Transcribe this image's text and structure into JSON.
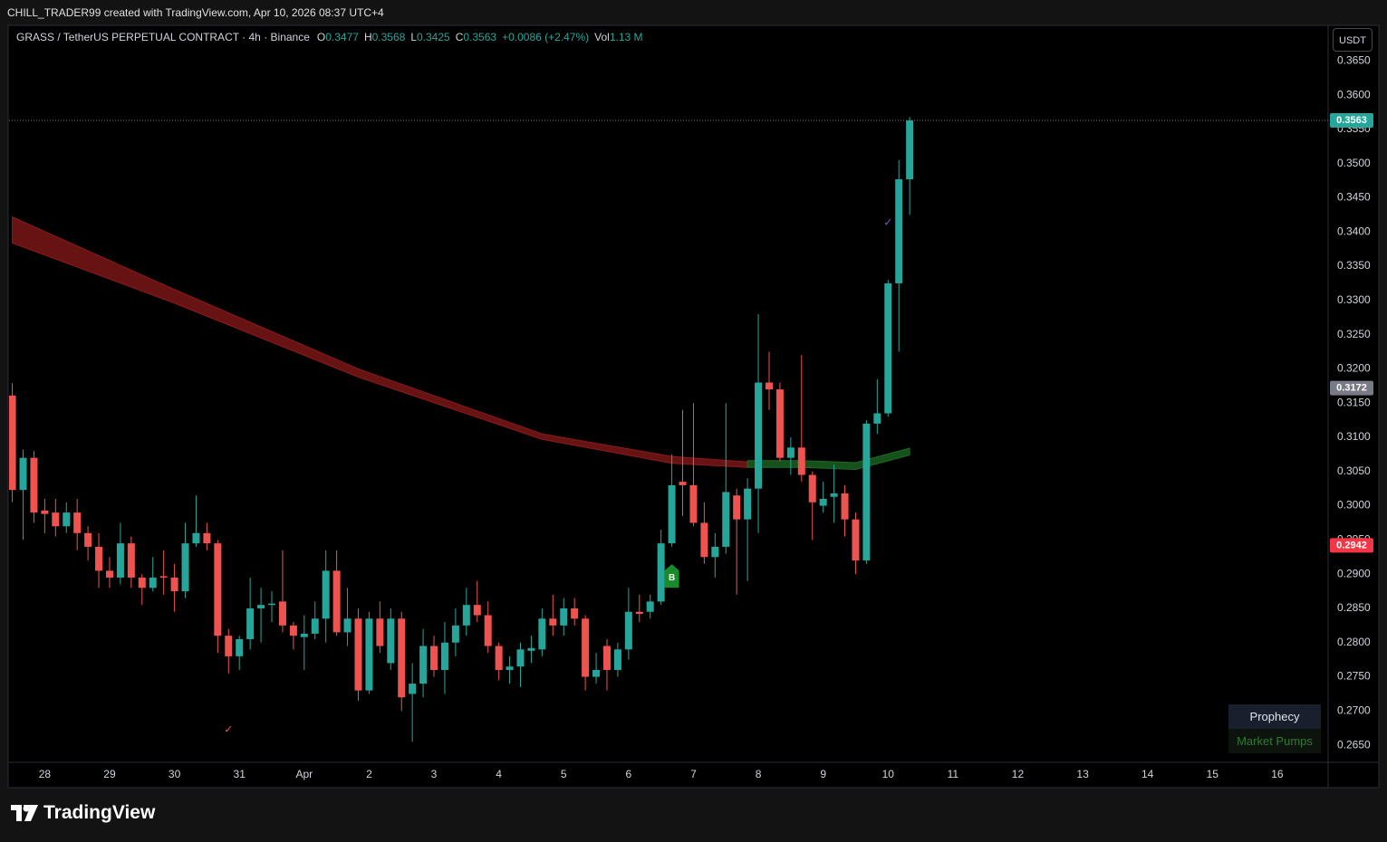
{
  "header": {
    "credit": "CHILL_TRADER99 created with TradingView.com, Apr 10, 2026 08:37 UTC+4",
    "currency": "USDT",
    "brand": "TradingView"
  },
  "legend": {
    "symbol": "GRASS / TetherUS PERPETUAL CONTRACT · 4h · Binance",
    "items": [
      {
        "label": "O",
        "value": "0.3477"
      },
      {
        "label": "H",
        "value": "0.3568"
      },
      {
        "label": "L",
        "value": "0.3425"
      },
      {
        "label": "C",
        "value": "0.3563"
      }
    ],
    "change": "+0.0086 (+2.47%)",
    "volume": {
      "label": "Vol",
      "value": "1.13 M"
    }
  },
  "indicator_panel": {
    "title": "Prophecy",
    "subtitle": "Market Pumps"
  },
  "chart_data": {
    "type": "candlestick",
    "colors": {
      "up": "#26a69a",
      "down": "#ef5350"
    },
    "open": [
      0.3161,
      0.3023,
      0.307,
      0.2993,
      0.299,
      0.297,
      0.299,
      0.296,
      0.294,
      0.2905,
      0.2895,
      0.2945,
      0.2895,
      0.288,
      0.2897,
      0.2895,
      0.2875,
      0.2945,
      0.296,
      0.2945,
      0.281,
      0.278,
      0.2805,
      0.285,
      0.2855,
      0.286,
      0.2825,
      0.2808,
      0.2813,
      0.2835,
      0.2905,
      0.2815,
      0.2835,
      0.273,
      0.2835,
      0.277,
      0.2835,
      0.2725,
      0.274,
      0.2795,
      0.276,
      0.28,
      0.2825,
      0.2855,
      0.284,
      0.2795,
      0.276,
      0.2765,
      0.2788,
      0.279,
      0.2835,
      0.2825,
      0.285,
      0.2835,
      0.275,
      0.2795,
      0.276,
      0.279,
      0.2845,
      0.2845,
      0.286,
      0.2945,
      0.3035,
      0.303,
      0.2975,
      0.2925,
      0.294,
      0.3015,
      0.298,
      0.3025,
      0.318,
      0.317,
      0.307,
      0.3085,
      0.3045,
      0.3,
      0.3013,
      0.3018,
      0.298,
      0.292,
      0.312,
      0.3135,
      0.3325,
      0.3477
    ],
    "high": [
      0.3179,
      0.3082,
      0.308,
      0.301,
      0.301,
      0.3005,
      0.301,
      0.297,
      0.296,
      0.2925,
      0.2975,
      0.2955,
      0.29,
      0.2925,
      0.2935,
      0.2915,
      0.2975,
      0.3015,
      0.2975,
      0.295,
      0.282,
      0.281,
      0.2895,
      0.288,
      0.2875,
      0.2935,
      0.283,
      0.284,
      0.286,
      0.2935,
      0.2935,
      0.288,
      0.285,
      0.2845,
      0.286,
      0.285,
      0.2845,
      0.277,
      0.282,
      0.281,
      0.283,
      0.285,
      0.288,
      0.289,
      0.286,
      0.28,
      0.278,
      0.28,
      0.281,
      0.285,
      0.287,
      0.2865,
      0.2865,
      0.284,
      0.2785,
      0.2805,
      0.28,
      0.288,
      0.287,
      0.287,
      0.2965,
      0.3075,
      0.314,
      0.315,
      0.3005,
      0.296,
      0.315,
      0.3025,
      0.304,
      0.328,
      0.3225,
      0.318,
      0.31,
      0.322,
      0.305,
      0.3035,
      0.306,
      0.303,
      0.299,
      0.3125,
      0.3185,
      0.333,
      0.3505,
      0.3568
    ],
    "low": [
      0.3005,
      0.295,
      0.2975,
      0.296,
      0.2955,
      0.296,
      0.2935,
      0.292,
      0.288,
      0.288,
      0.2885,
      0.288,
      0.2855,
      0.2875,
      0.287,
      0.2845,
      0.2865,
      0.294,
      0.2935,
      0.2785,
      0.2755,
      0.276,
      0.279,
      0.28,
      0.283,
      0.2815,
      0.279,
      0.276,
      0.2805,
      0.28,
      0.281,
      0.2795,
      0.2715,
      0.2725,
      0.2785,
      0.276,
      0.27,
      0.2655,
      0.272,
      0.275,
      0.2725,
      0.278,
      0.281,
      0.283,
      0.2785,
      0.2745,
      0.274,
      0.2735,
      0.277,
      0.278,
      0.281,
      0.281,
      0.2825,
      0.273,
      0.274,
      0.273,
      0.275,
      0.2775,
      0.283,
      0.2835,
      0.2855,
      0.294,
      0.2985,
      0.297,
      0.2915,
      0.2895,
      0.293,
      0.287,
      0.289,
      0.296,
      0.314,
      0.3065,
      0.3045,
      0.3035,
      0.295,
      0.299,
      0.2975,
      0.2955,
      0.29,
      0.2915,
      0.3105,
      0.313,
      0.3225,
      0.3425
    ],
    "close": [
      0.3023,
      0.307,
      0.299,
      0.2988,
      0.297,
      0.299,
      0.296,
      0.294,
      0.2905,
      0.2895,
      0.2945,
      0.2895,
      0.288,
      0.2895,
      0.2895,
      0.2875,
      0.2945,
      0.296,
      0.2945,
      0.281,
      0.278,
      0.2805,
      0.285,
      0.2855,
      0.2857,
      0.2825,
      0.281,
      0.2813,
      0.2835,
      0.2905,
      0.2815,
      0.2835,
      0.273,
      0.2835,
      0.2795,
      0.2835,
      0.272,
      0.274,
      0.2795,
      0.276,
      0.28,
      0.2825,
      0.2855,
      0.284,
      0.2795,
      0.276,
      0.2765,
      0.279,
      0.2792,
      0.2835,
      0.2825,
      0.285,
      0.2835,
      0.275,
      0.276,
      0.276,
      0.279,
      0.2845,
      0.2842,
      0.286,
      0.2945,
      0.303,
      0.303,
      0.2975,
      0.2925,
      0.294,
      0.302,
      0.298,
      0.3025,
      0.318,
      0.317,
      0.307,
      0.3085,
      0.3045,
      0.3005,
      0.301,
      0.3018,
      0.298,
      0.292,
      0.312,
      0.3135,
      0.3325,
      0.3477,
      0.3563
    ],
    "xlim": [
      -0.3,
      121.7
    ],
    "ylim": [
      0.2625,
      0.3702
    ],
    "xticks": [
      {
        "value": 3,
        "label": "28"
      },
      {
        "value": 9,
        "label": "29"
      },
      {
        "value": 15,
        "label": "30"
      },
      {
        "value": 21,
        "label": "31"
      },
      {
        "value": 27,
        "label": "Apr"
      },
      {
        "value": 33,
        "label": "2"
      },
      {
        "value": 39,
        "label": "3"
      },
      {
        "value": 45,
        "label": "4"
      },
      {
        "value": 51,
        "label": "5"
      },
      {
        "value": 57,
        "label": "6"
      },
      {
        "value": 63,
        "label": "7"
      },
      {
        "value": 69,
        "label": "8"
      },
      {
        "value": 75,
        "label": "9"
      },
      {
        "value": 81,
        "label": "10"
      },
      {
        "value": 87,
        "label": "11"
      },
      {
        "value": 93,
        "label": "12"
      },
      {
        "value": 99,
        "label": "13"
      },
      {
        "value": 105,
        "label": "14"
      },
      {
        "value": 111,
        "label": "15"
      },
      {
        "value": 117,
        "label": "16"
      }
    ],
    "yticks": [
      {
        "value": 0.265,
        "label": "0.2650"
      },
      {
        "value": 0.27,
        "label": "0.2700"
      },
      {
        "value": 0.275,
        "label": "0.2750"
      },
      {
        "value": 0.28,
        "label": "0.2800"
      },
      {
        "value": 0.285,
        "label": "0.2850"
      },
      {
        "value": 0.29,
        "label": "0.2900"
      },
      {
        "value": 0.295,
        "label": "0.2950"
      },
      {
        "value": 0.3,
        "label": "0.3000"
      },
      {
        "value": 0.305,
        "label": "0.3050"
      },
      {
        "value": 0.31,
        "label": "0.3100"
      },
      {
        "value": 0.315,
        "label": "0.3150"
      },
      {
        "value": 0.32,
        "label": "0.3200"
      },
      {
        "value": 0.325,
        "label": "0.3250"
      },
      {
        "value": 0.33,
        "label": "0.3300"
      },
      {
        "value": 0.335,
        "label": "0.3350"
      },
      {
        "value": 0.34,
        "label": "0.3400"
      },
      {
        "value": 0.345,
        "label": "0.3450"
      },
      {
        "value": 0.35,
        "label": "0.3500"
      },
      {
        "value": 0.355,
        "label": "0.3550"
      },
      {
        "value": 0.36,
        "label": "0.3600"
      },
      {
        "value": 0.365,
        "label": "0.3650"
      }
    ],
    "grid": false,
    "price_labels": [
      {
        "value": 0.3563,
        "label": "0.3563",
        "color": "#26a69a",
        "line": true
      },
      {
        "value": 0.3172,
        "label": "0.3172",
        "color": "#787b86",
        "line": false
      },
      {
        "value": 0.2942,
        "label": "0.2942",
        "color": "#f23645",
        "line": false
      }
    ],
    "bands": [
      {
        "color": "#8b1a1a",
        "x": [
          0,
          15,
          32,
          49,
          61,
          68
        ],
        "upper": [
          0.3422,
          0.3316,
          0.32,
          0.3105,
          0.3072,
          0.3064
        ],
        "lower": [
          0.3384,
          0.3296,
          0.3188,
          0.3097,
          0.3062,
          0.3056
        ]
      },
      {
        "color": "#1e6b23",
        "x": [
          68,
          73,
          78,
          83
        ],
        "upper": [
          0.3066,
          0.3066,
          0.3063,
          0.3084
        ],
        "lower": [
          0.3056,
          0.3056,
          0.3053,
          0.3074
        ]
      }
    ],
    "markers": [
      {
        "x": 61,
        "value": 0.2896,
        "label": "B",
        "color": "#1b8a2a"
      },
      {
        "x": 20,
        "value": 0.2672,
        "label": "✓",
        "color": "#ef5350"
      },
      {
        "x": 81,
        "value": 0.3413,
        "label": "✓",
        "color": "#7e57c2"
      }
    ]
  }
}
